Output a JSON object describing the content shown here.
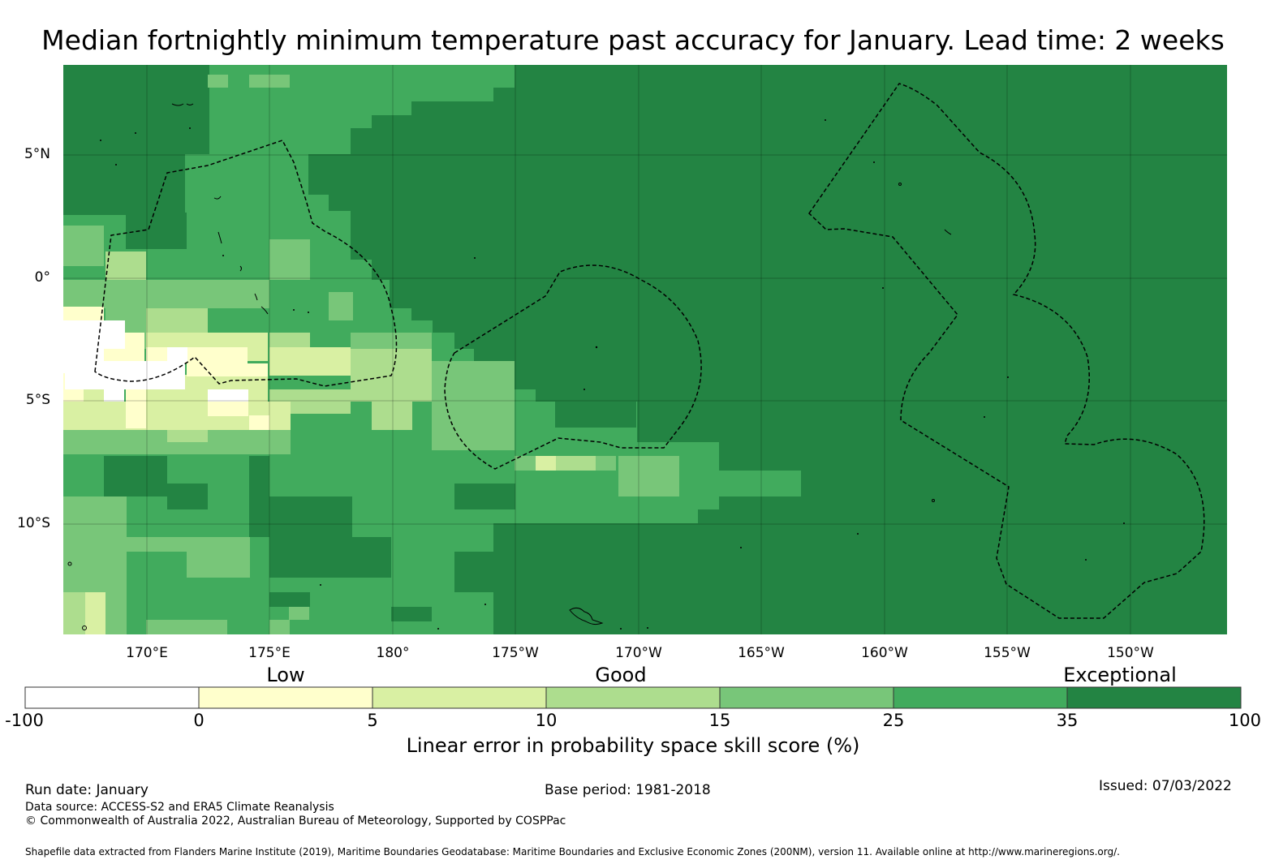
{
  "title": "Median fortnightly minimum temperature past accuracy for January. Lead time: 2 weeks",
  "map": {
    "lat_labels": [
      "5°N",
      "0°",
      "5°S",
      "10°S"
    ],
    "lon_labels": [
      "170°E",
      "175°E",
      "180°",
      "175°W",
      "170°W",
      "165°W",
      "160°W",
      "155°W",
      "150°W"
    ],
    "colors": {
      "-100_0": "#ffffff",
      "0_5": "#ffffcc",
      "5_10": "#d9f0a3",
      "10_15": "#addd8e",
      "15_25": "#78c679",
      "25_35": "#41ab5d",
      "35_100": "#238443"
    }
  },
  "legend": {
    "categories": [
      "Low",
      "Good",
      "Exceptional"
    ],
    "ticks": [
      "-100",
      "0",
      "5",
      "10",
      "15",
      "25",
      "35",
      "100"
    ],
    "bins": [
      {
        "range": "-100 to 0",
        "color": "#ffffff"
      },
      {
        "range": "0 to 5",
        "color": "#ffffcc"
      },
      {
        "range": "5 to 10",
        "color": "#d9f0a3"
      },
      {
        "range": "10 to 15",
        "color": "#addd8e"
      },
      {
        "range": "15 to 25",
        "color": "#78c679"
      },
      {
        "range": "25 to 35",
        "color": "#41ab5d"
      },
      {
        "range": "35 to 100",
        "color": "#238443"
      }
    ],
    "title": "Linear error in probability space skill score (%)"
  },
  "footer": {
    "run_date": "Run date: January",
    "base_period": "Base period: 1981-2018",
    "issued": "Issued: 07/03/2022",
    "data_source": "Data source: ACCESS-S2 and ERA5 Climate Reanalysis",
    "copyright": "© Commonwealth of Australia 2022, Australian Bureau of Meteorology, Supported by COSPPac",
    "shapefile": "Shapefile data extracted from Flanders Marine Institute (2019), Maritime Boundaries Geodatabase: Maritime Boundaries and Exclusive Economic Zones (200NM), version 11. Available online at http://www.marineregions.org/."
  }
}
